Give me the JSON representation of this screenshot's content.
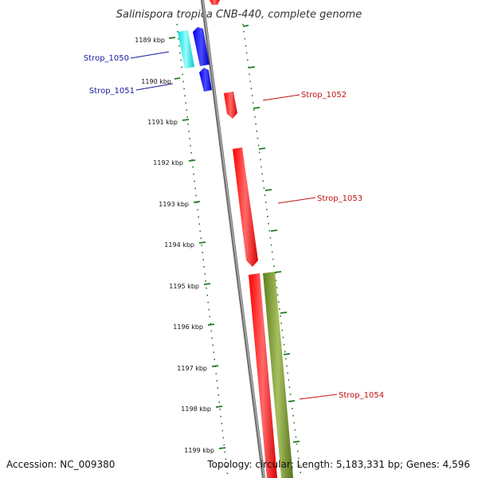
{
  "title": "Salinispora tropica CNB-440, complete genome",
  "accession": "Accession: NC_009380",
  "summary": "Topology: circular; Length: 5,183,331 bp; Genes: 4,596",
  "ticks": [
    "1189 kbp",
    "1190 kbp",
    "1191 kbp",
    "1192 kbp",
    "1193 kbp",
    "1194 kbp",
    "1195 kbp",
    "1196 kbp",
    "1197 kbp",
    "1198 kbp",
    "1199 kbp"
  ],
  "genes": [
    {
      "label": "Strop_1050",
      "strand": "reverse"
    },
    {
      "label": "Strop_1051",
      "strand": "reverse"
    },
    {
      "label": "Strop_1052",
      "strand": "forward"
    },
    {
      "label": "Strop_1053",
      "strand": "forward"
    },
    {
      "label": "Strop_1054",
      "strand": "forward"
    }
  ],
  "colors": {
    "reverse_label": "#1a1aa0",
    "forward_label": "#c01010",
    "tick": "#1f7a1f",
    "backbone": "#8a8a8a",
    "red_feature": "#ff0000",
    "blue_feature": "#0000ee",
    "cyan_feature": "#00e8e8",
    "green_feature": "#6b8e23"
  }
}
